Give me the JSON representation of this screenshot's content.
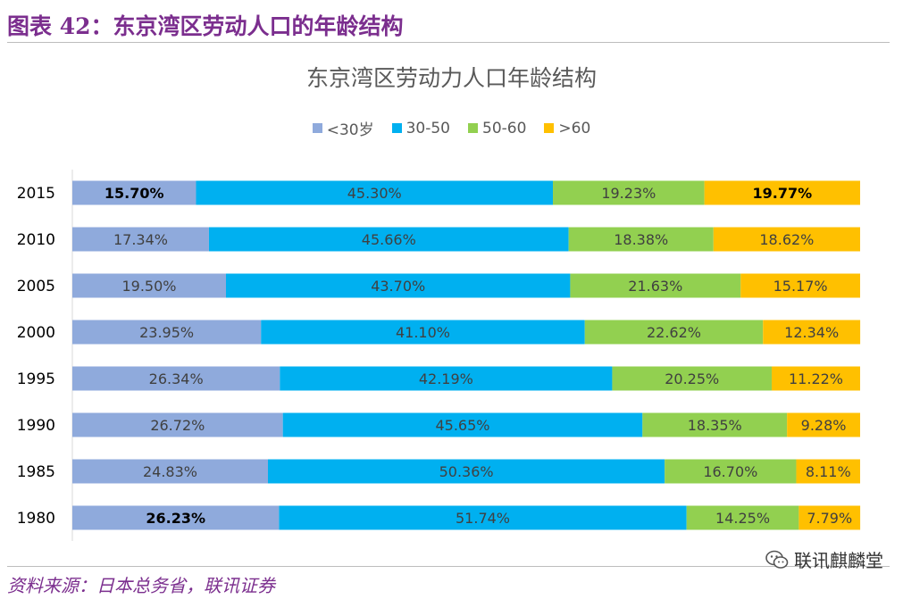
{
  "header": {
    "figure_title": "图表 42：东京湾区劳动人口的年龄结构"
  },
  "footer": {
    "source": "资料来源：日本总务省，联讯证券"
  },
  "watermark": {
    "text": "联讯麒麟堂"
  },
  "chart_data": {
    "type": "bar",
    "orientation": "horizontal",
    "stacked": "percent",
    "title": "东京湾区劳动力人口年龄结构",
    "xlabel": "",
    "ylabel": "",
    "legend_position": "top",
    "categories": [
      "2015",
      "2010",
      "2005",
      "2000",
      "1995",
      "1990",
      "1985",
      "1980"
    ],
    "series": [
      {
        "name": "<30岁",
        "color": "#8faadc",
        "values": [
          15.7,
          17.34,
          19.5,
          23.95,
          26.34,
          26.72,
          24.83,
          26.23
        ],
        "labels": [
          "15.70%",
          "17.34%",
          "19.50%",
          "23.95%",
          "26.34%",
          "26.72%",
          "24.83%",
          "26.23%"
        ]
      },
      {
        "name": "30-50",
        "color": "#00b0f0",
        "values": [
          45.3,
          45.66,
          43.7,
          41.1,
          42.19,
          45.65,
          50.36,
          51.74
        ],
        "labels": [
          "45.30%",
          "45.66%",
          "43.70%",
          "41.10%",
          "42.19%",
          "45.65%",
          "50.36%",
          "51.74%"
        ]
      },
      {
        "name": "50-60",
        "color": "#92d050",
        "values": [
          19.23,
          18.38,
          21.63,
          22.62,
          20.25,
          18.35,
          16.7,
          14.25
        ],
        "labels": [
          "19.23%",
          "18.38%",
          "21.63%",
          "22.62%",
          "20.25%",
          "18.35%",
          "16.70%",
          "14.25%"
        ]
      },
      {
        "name": ">60",
        "color": "#ffc000",
        "values": [
          19.77,
          18.62,
          15.17,
          12.34,
          11.22,
          9.28,
          8.11,
          7.79
        ],
        "labels": [
          "19.77%",
          "18.62%",
          "15.17%",
          "12.34%",
          "11.22%",
          "9.28%",
          "8.11%",
          "7.79%"
        ]
      }
    ],
    "bold_labels": [
      {
        "category": "2015",
        "series": "<30岁"
      },
      {
        "category": "2015",
        "series": ">60"
      },
      {
        "category": "1980",
        "series": "<30岁"
      }
    ],
    "xlim": [
      0,
      100
    ]
  }
}
